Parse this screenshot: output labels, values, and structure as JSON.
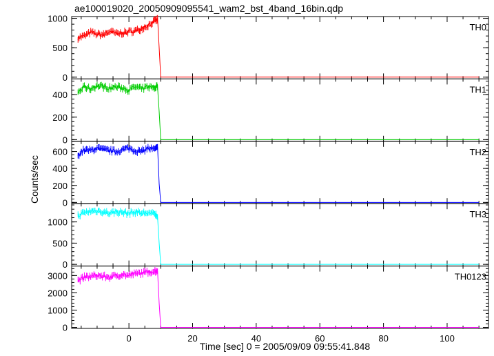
{
  "title": "ae100019020_20050909095541_wam2_bst_4band_16bin.qdp",
  "xlabel": "Time [sec] 0 = 2005/09/09 09:55:41.848",
  "ylabel": "Counts/sec",
  "chart_data": {
    "type": "line",
    "title": "ae100019020_20050909095541_wam2_bst_4band_16bin.qdp",
    "xlabel": "Time [sec] 0 = 2005/09/09 09:55:41.848",
    "ylabel": "Counts/sec",
    "xlim": [
      -18,
      113
    ],
    "xticks": [
      0,
      20,
      40,
      60,
      80,
      100
    ],
    "grid": false,
    "panels": [
      {
        "name": "TH0",
        "color": "#ff0000",
        "ylim": [
          -30,
          1030
        ],
        "yticks": [
          0,
          500,
          1000
        ],
        "x": [
          -16,
          -14,
          -12,
          -10,
          -8,
          -6,
          -4,
          -2,
          0,
          2,
          4,
          6,
          8,
          9,
          9.5,
          10,
          12,
          20,
          40,
          60,
          80,
          100,
          110
        ],
        "values": [
          670,
          700,
          760,
          730,
          720,
          780,
          740,
          750,
          770,
          790,
          820,
          880,
          950,
          980,
          500,
          0,
          0,
          0,
          0,
          0,
          0,
          0,
          0
        ]
      },
      {
        "name": "TH1",
        "color": "#00cc00",
        "ylim": [
          -15,
          540
        ],
        "yticks": [
          0,
          200,
          400
        ],
        "x": [
          -16,
          -14,
          -12,
          -10,
          -8,
          -6,
          -4,
          -2,
          0,
          2,
          4,
          6,
          8,
          9,
          9.5,
          10,
          12,
          20,
          40,
          60,
          80,
          100,
          110
        ],
        "values": [
          420,
          470,
          450,
          480,
          470,
          460,
          470,
          460,
          440,
          470,
          450,
          470,
          460,
          480,
          250,
          0,
          0,
          0,
          0,
          0,
          0,
          0,
          0
        ]
      },
      {
        "name": "TH2",
        "color": "#0000ff",
        "ylim": [
          -15,
          720
        ],
        "yticks": [
          0,
          200,
          400,
          600
        ],
        "x": [
          -16,
          -14,
          -12,
          -10,
          -8,
          -6,
          -4,
          -2,
          0,
          2,
          4,
          6,
          8,
          9,
          9.5,
          10,
          12,
          20,
          40,
          60,
          80,
          100,
          110
        ],
        "values": [
          560,
          620,
          610,
          640,
          620,
          610,
          600,
          620,
          640,
          610,
          600,
          640,
          620,
          640,
          220,
          0,
          0,
          0,
          0,
          0,
          0,
          0,
          0
        ]
      },
      {
        "name": "TH3",
        "color": "#00ffff",
        "ylim": [
          -40,
          1430
        ],
        "yticks": [
          0,
          500,
          1000
        ],
        "x": [
          -16,
          -14,
          -12,
          -10,
          -8,
          -6,
          -4,
          -2,
          0,
          2,
          4,
          6,
          8,
          9,
          9.5,
          10,
          12,
          20,
          40,
          60,
          80,
          100,
          110
        ],
        "values": [
          1150,
          1220,
          1250,
          1260,
          1240,
          1210,
          1230,
          1220,
          1200,
          1230,
          1210,
          1220,
          1180,
          1150,
          500,
          0,
          0,
          0,
          0,
          0,
          0,
          0,
          0
        ]
      },
      {
        "name": "TH0123",
        "color": "#ff00ff",
        "ylim": [
          -60,
          3550
        ],
        "yticks": [
          0,
          1000,
          2000,
          3000
        ],
        "x": [
          -16,
          -14,
          -12,
          -10,
          -8,
          -6,
          -4,
          -2,
          0,
          2,
          4,
          6,
          8,
          9,
          9.5,
          10,
          12,
          20,
          40,
          60,
          80,
          100,
          110
        ],
        "values": [
          2700,
          2900,
          2950,
          3000,
          2950,
          2900,
          3000,
          3050,
          3000,
          3100,
          3150,
          3200,
          3250,
          3300,
          1400,
          0,
          0,
          0,
          0,
          0,
          0,
          0,
          0
        ]
      }
    ]
  }
}
